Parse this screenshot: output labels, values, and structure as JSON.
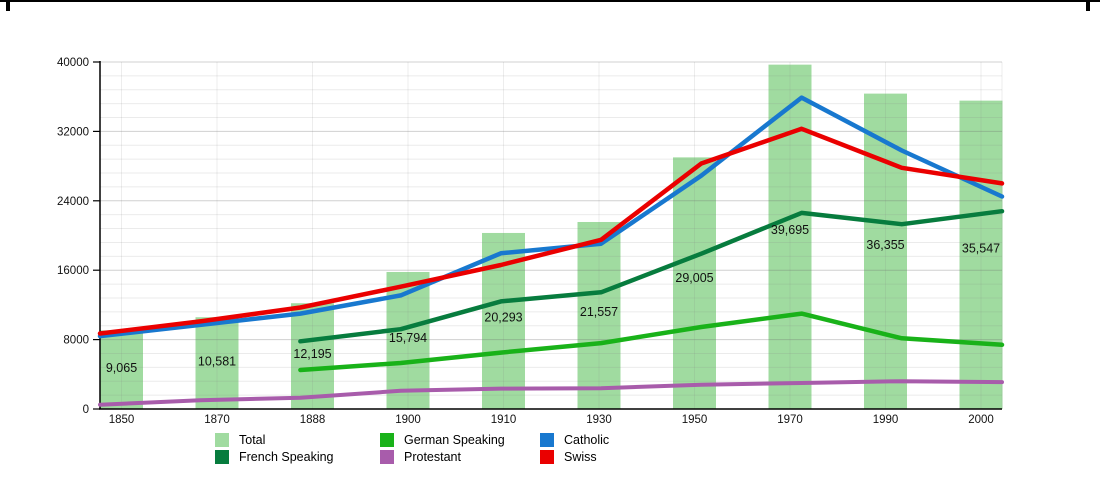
{
  "chart_data": {
    "type": "bar+line combo",
    "categories": [
      "1850",
      "1870",
      "1888",
      "1900",
      "1910",
      "1930",
      "1950",
      "1970",
      "1990",
      "2000"
    ],
    "bars": {
      "name": "Total",
      "color": "#a0dba0",
      "values": [
        9065,
        10581,
        12195,
        15794,
        20293,
        21557,
        29005,
        39695,
        36355,
        35547
      ],
      "labels": [
        "9,065",
        "10,581",
        "12,195",
        "15,794",
        "20,293",
        "21,557",
        "29,005",
        "39,695",
        "36,355",
        "35,547"
      ]
    },
    "series": [
      {
        "name": "Protestant",
        "color": "#a85cab",
        "values": [
          500,
          1000,
          1300,
          2100,
          2350,
          2400,
          2800,
          3000,
          3200,
          3100
        ]
      },
      {
        "name": "German Speaking",
        "color": "#19b219",
        "values": [
          null,
          null,
          4500,
          5300,
          6500,
          7600,
          9450,
          11000,
          8150,
          7400
        ]
      },
      {
        "name": "French Speaking",
        "color": "#077c3e",
        "values": [
          null,
          null,
          7800,
          9200,
          12400,
          13450,
          17900,
          22600,
          21300,
          22800
        ]
      },
      {
        "name": "Catholic",
        "color": "#1878cf",
        "values": [
          8400,
          9700,
          11000,
          13100,
          17950,
          19050,
          26900,
          35900,
          29800,
          24500
        ]
      },
      {
        "name": "Swiss",
        "color": "#ea0000",
        "values": [
          8700,
          10100,
          11700,
          14100,
          16600,
          19500,
          28300,
          32300,
          27800,
          26000
        ]
      }
    ],
    "title": "",
    "xlabel": "",
    "ylabel": "",
    "ylim": [
      0,
      40000
    ],
    "yticks": [
      0,
      8000,
      16000,
      24000,
      32000,
      40000
    ],
    "ytick_labels": [
      "0",
      "8000",
      "16000",
      "24000",
      "32000",
      "40000"
    ],
    "minor_grid_step": 1600,
    "grid": "on",
    "legend_position": "bottom"
  },
  "legend": {
    "items": [
      {
        "label": "Total",
        "color": "#a0dba0"
      },
      {
        "label": "German Speaking",
        "color": "#19b219"
      },
      {
        "label": "Catholic",
        "color": "#1878cf"
      },
      {
        "label": "French Speaking",
        "color": "#077c3e"
      },
      {
        "label": "Protestant",
        "color": "#a85cab"
      },
      {
        "label": "Swiss",
        "color": "#ea0000"
      }
    ]
  },
  "colors": {
    "background": "#ffffff",
    "axis": "#000000",
    "major_grid": "#c9c9c9",
    "minor_grid": "#e9e9e9",
    "text": "#111111"
  }
}
